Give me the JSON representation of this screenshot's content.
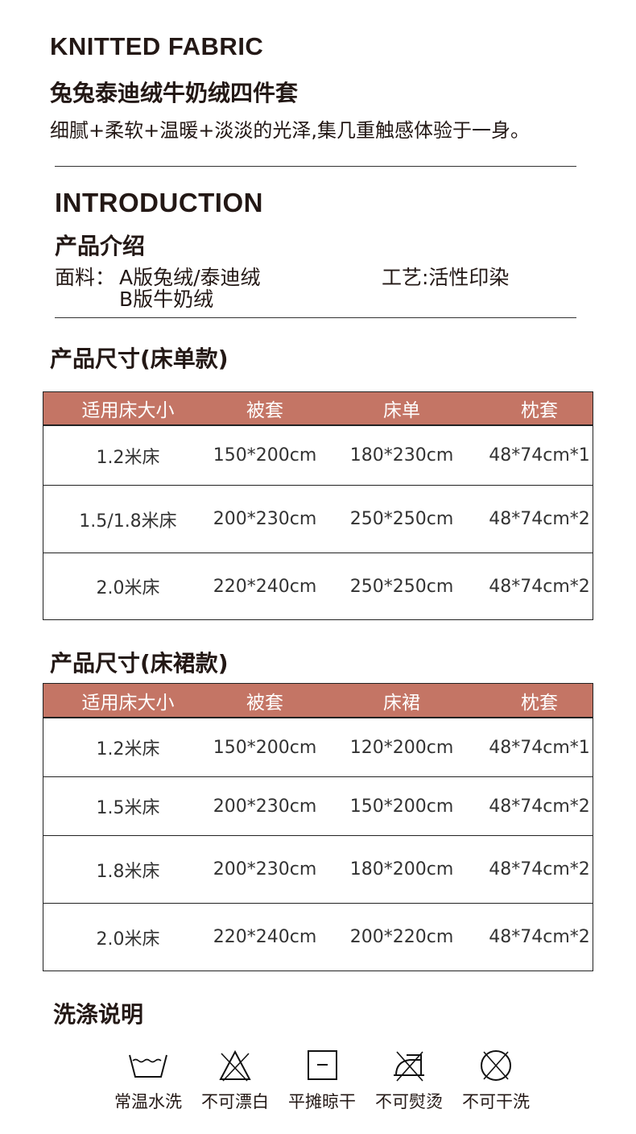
{
  "header": {
    "title_en": "KNITTED FABRIC",
    "title_cn": "兔兔泰迪绒牛奶绒四件套",
    "description": "细腻+柔软+温暖+淡淡的光泽,集几重触感体验于一身。"
  },
  "intro": {
    "title_en": "INTRODUCTION",
    "title_cn": "产品介绍",
    "fabric_label": "面料：",
    "fabric_a": "A版兔绒/泰迪绒",
    "fabric_b": "B版牛奶绒",
    "craft": "工艺:活性印染"
  },
  "accent_color": "#c47565",
  "sheet_table": {
    "title": "产品尺寸(床单款)",
    "headers": [
      "适用床大小",
      "被套",
      "床单",
      "枕套"
    ],
    "rows": [
      [
        "1.2米床",
        "150*200cm",
        "180*230cm",
        "48*74cm*1"
      ],
      [
        "1.5/1.8米床",
        "200*230cm",
        "250*250cm",
        "48*74cm*2"
      ],
      [
        "2.0米床",
        "220*240cm",
        "250*250cm",
        "48*74cm*2"
      ]
    ]
  },
  "skirt_table": {
    "title": "产品尺寸(床裙款)",
    "headers": [
      "适用床大小",
      "被套",
      "床裙",
      "枕套"
    ],
    "rows": [
      [
        "1.2米床",
        "150*200cm",
        "120*200cm",
        "48*74cm*1"
      ],
      [
        "1.5米床",
        "200*230cm",
        "150*200cm",
        "48*74cm*2"
      ],
      [
        "1.8米床",
        "200*230cm",
        "180*200cm",
        "48*74cm*2"
      ],
      [
        "2.0米床",
        "220*240cm",
        "200*220cm",
        "48*74cm*2"
      ]
    ]
  },
  "care": {
    "title": "洗涤说明",
    "items": [
      {
        "icon": "wash-tub-icon",
        "label": "常温水洗"
      },
      {
        "icon": "no-bleach-icon",
        "label": "不可漂白"
      },
      {
        "icon": "dry-flat-icon",
        "label": "平摊晾干"
      },
      {
        "icon": "no-iron-icon",
        "label": "不可熨烫"
      },
      {
        "icon": "no-dryclean-icon",
        "label": "不可干洗"
      }
    ]
  }
}
